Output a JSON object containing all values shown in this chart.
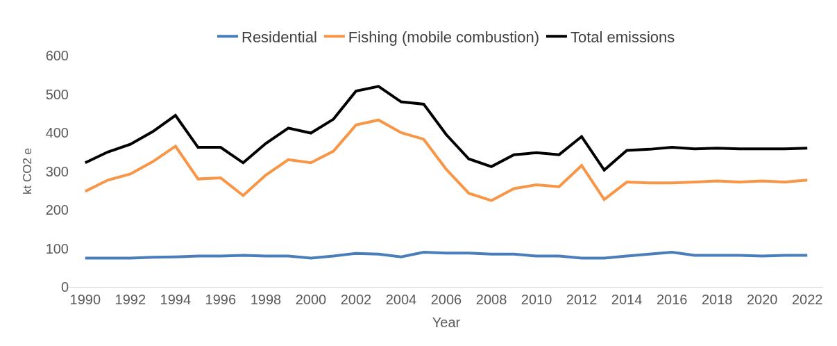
{
  "chart_data": {
    "type": "line",
    "xlabel": "Year",
    "ylabel": "kt CO2 e",
    "x": [
      1990,
      1991,
      1992,
      1993,
      1994,
      1995,
      1996,
      1997,
      1998,
      1999,
      2000,
      2001,
      2002,
      2003,
      2004,
      2005,
      2006,
      2007,
      2008,
      2009,
      2010,
      2011,
      2012,
      2013,
      2014,
      2015,
      2016,
      2017,
      2018,
      2019,
      2020,
      2021,
      2022
    ],
    "xlim": [
      1989.3,
      2022.7
    ],
    "xticks": [
      1990,
      1992,
      1994,
      1996,
      1998,
      2000,
      2002,
      2004,
      2006,
      2008,
      2010,
      2012,
      2014,
      2016,
      2018,
      2020,
      2022
    ],
    "ylim": [
      0,
      600
    ],
    "yticks": [
      0,
      100,
      200,
      300,
      400,
      500,
      600
    ],
    "series": [
      {
        "name": "Residential",
        "color": "#4a7ebb",
        "values": [
          75,
          75,
          75,
          77,
          78,
          80,
          80,
          82,
          80,
          80,
          75,
          80,
          87,
          85,
          78,
          90,
          88,
          88,
          85,
          85,
          80,
          80,
          75,
          75,
          80,
          85,
          90,
          82,
          82,
          82,
          80,
          82,
          82
        ]
      },
      {
        "name": "Fishing (mobile combustion)",
        "color": "#f79646",
        "values": [
          248,
          277,
          293,
          325,
          365,
          280,
          283,
          237,
          290,
          330,
          322,
          352,
          420,
          433,
          400,
          383,
          305,
          243,
          224,
          255,
          265,
          260,
          315,
          227,
          272,
          270,
          270,
          272,
          275,
          272,
          275,
          272,
          277
        ]
      },
      {
        "name": "Total emissions",
        "color": "#000000",
        "values": [
          322,
          350,
          370,
          403,
          445,
          362,
          362,
          322,
          372,
          412,
          399,
          435,
          508,
          520,
          480,
          474,
          395,
          332,
          312,
          343,
          348,
          343,
          390,
          303,
          354,
          357,
          362,
          358,
          360,
          358,
          358,
          358,
          360
        ]
      }
    ],
    "grid": false,
    "legend": "top",
    "line_style": "solid",
    "marker": "none"
  }
}
